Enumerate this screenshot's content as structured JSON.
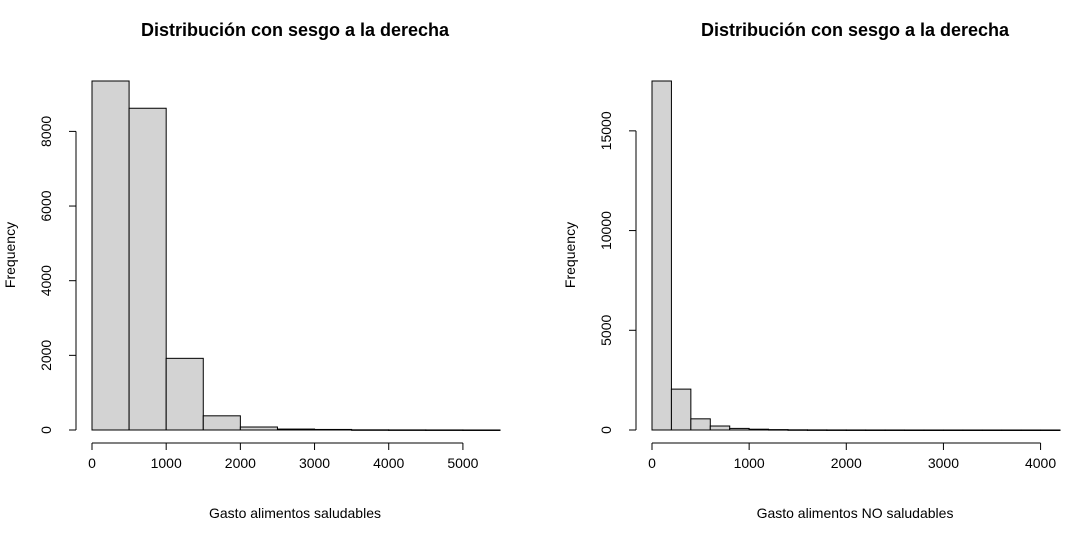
{
  "colors": {
    "bar_fill": "#d3d3d3",
    "bar_stroke": "#000000",
    "background": "#ffffff"
  },
  "chart_data": [
    {
      "type": "bar",
      "title": "Distribución con sesgo a la derecha",
      "xlabel": "Gasto alimentos saludables",
      "ylabel": "Frequency",
      "bin_width": 500,
      "bins": [
        {
          "start": 0,
          "end": 500,
          "count": 9350
        },
        {
          "start": 500,
          "end": 1000,
          "count": 8620
        },
        {
          "start": 1000,
          "end": 1500,
          "count": 1920
        },
        {
          "start": 1500,
          "end": 2000,
          "count": 380
        },
        {
          "start": 2000,
          "end": 2500,
          "count": 80
        },
        {
          "start": 2500,
          "end": 3000,
          "count": 25
        },
        {
          "start": 3000,
          "end": 3500,
          "count": 15
        },
        {
          "start": 3500,
          "end": 4000,
          "count": 5
        },
        {
          "start": 4000,
          "end": 4500,
          "count": 3
        },
        {
          "start": 4500,
          "end": 5000,
          "count": 2
        },
        {
          "start": 5000,
          "end": 5500,
          "count": 1
        }
      ],
      "xticks": [
        0,
        1000,
        2000,
        3000,
        4000,
        5000
      ],
      "xtick_labels": [
        "0",
        "1000",
        "2000",
        "3000",
        "4000",
        "5000"
      ],
      "yticks": [
        0,
        2000,
        4000,
        6000,
        8000
      ],
      "ytick_labels": [
        "0",
        "2000",
        "4000",
        "6000",
        "8000"
      ],
      "xlim": [
        0,
        5500
      ],
      "ylim": [
        0,
        9350
      ],
      "grid": false
    },
    {
      "type": "bar",
      "title": "Distribución con sesgo a la derecha",
      "xlabel": "Gasto alimentos NO saludables",
      "ylabel": "Frequency",
      "bin_width": 200,
      "bins": [
        {
          "start": 0,
          "end": 200,
          "count": 17500
        },
        {
          "start": 200,
          "end": 400,
          "count": 2050
        },
        {
          "start": 400,
          "end": 600,
          "count": 560
        },
        {
          "start": 600,
          "end": 800,
          "count": 200
        },
        {
          "start": 800,
          "end": 1000,
          "count": 80
        },
        {
          "start": 1000,
          "end": 1200,
          "count": 40
        },
        {
          "start": 1200,
          "end": 1400,
          "count": 20
        },
        {
          "start": 1400,
          "end": 1600,
          "count": 10
        },
        {
          "start": 1600,
          "end": 1800,
          "count": 6
        },
        {
          "start": 1800,
          "end": 2000,
          "count": 4
        },
        {
          "start": 2000,
          "end": 2200,
          "count": 3
        },
        {
          "start": 2200,
          "end": 2400,
          "count": 2
        },
        {
          "start": 2400,
          "end": 2600,
          "count": 2
        },
        {
          "start": 2600,
          "end": 2800,
          "count": 1
        },
        {
          "start": 2800,
          "end": 3000,
          "count": 1
        },
        {
          "start": 3000,
          "end": 3200,
          "count": 1
        },
        {
          "start": 3200,
          "end": 3400,
          "count": 1
        },
        {
          "start": 3400,
          "end": 3600,
          "count": 1
        },
        {
          "start": 3600,
          "end": 3800,
          "count": 1
        },
        {
          "start": 3800,
          "end": 4000,
          "count": 1
        },
        {
          "start": 4000,
          "end": 4200,
          "count": 1
        }
      ],
      "xticks": [
        0,
        1000,
        2000,
        3000,
        4000
      ],
      "xtick_labels": [
        "0",
        "1000",
        "2000",
        "3000",
        "4000"
      ],
      "yticks": [
        0,
        5000,
        10000,
        15000
      ],
      "ytick_labels": [
        "0",
        "5000",
        "10000",
        "15000"
      ],
      "xlim": [
        0,
        4200
      ],
      "ylim": [
        0,
        17500
      ],
      "grid": false
    }
  ]
}
